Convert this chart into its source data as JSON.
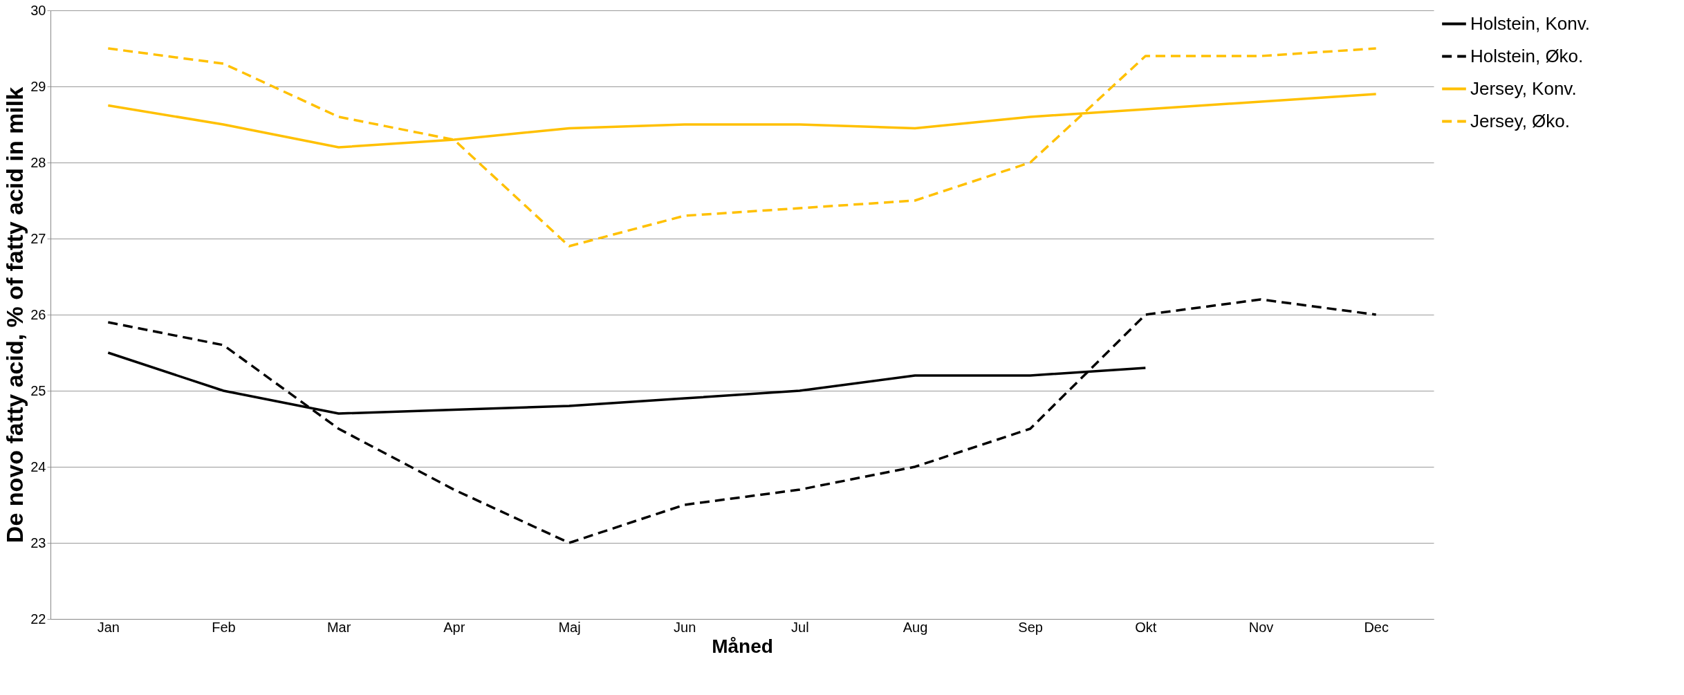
{
  "chart_data": {
    "type": "line",
    "xlabel": "Måned",
    "ylabel": "De novo fatty acid, % of fatty acid in milk",
    "categories": [
      "Jan",
      "Feb",
      "Mar",
      "Apr",
      "Maj",
      "Jun",
      "Jul",
      "Aug",
      "Sep",
      "Okt",
      "Nov",
      "Dec"
    ],
    "series": [
      {
        "name": "Holstein, Konv.",
        "color": "#000000",
        "line_style": "solid",
        "values": [
          25.5,
          25.0,
          24.7,
          24.75,
          24.8,
          24.9,
          25.0,
          25.2,
          25.2,
          25.3,
          null,
          null
        ]
      },
      {
        "name": "Holstein, Øko.",
        "color": "#000000",
        "line_style": "dashed",
        "values": [
          25.9,
          25.6,
          24.5,
          23.7,
          23.0,
          23.5,
          23.7,
          24.0,
          24.5,
          26.0,
          26.2,
          26.0
        ]
      },
      {
        "name": "Jersey, Konv.",
        "color": "#ffc000",
        "line_style": "solid",
        "values": [
          28.75,
          28.5,
          28.2,
          28.3,
          28.45,
          28.5,
          28.5,
          28.45,
          28.6,
          28.7,
          28.8,
          28.9
        ]
      },
      {
        "name": "Jersey, Øko.",
        "color": "#ffc000",
        "line_style": "dashed",
        "values": [
          29.5,
          29.3,
          28.6,
          28.3,
          26.9,
          27.3,
          27.4,
          27.5,
          28.0,
          29.4,
          29.4,
          29.5
        ]
      }
    ],
    "ylim": [
      22,
      30
    ],
    "yticks": [
      22,
      23,
      24,
      25,
      26,
      27,
      28,
      29,
      30
    ],
    "grid": "y",
    "legend": "right",
    "marker": "none"
  }
}
